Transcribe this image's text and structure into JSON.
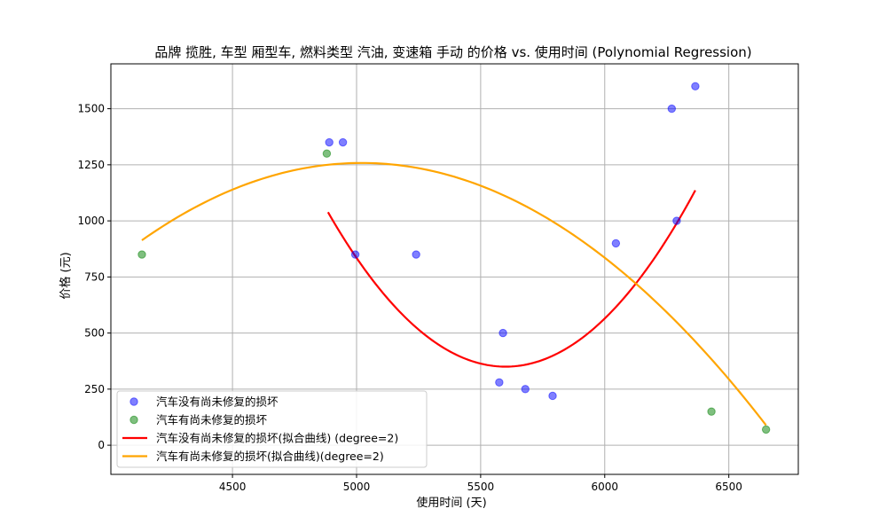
{
  "chart_data": {
    "type": "scatter",
    "title": "品牌 揽胜, 车型 厢型车, 燃料类型 汽油, 变速箱 手动 的价格 vs. 使用时间 (Polynomial Regression)",
    "xlabel": "使用时间 (天)",
    "ylabel": "价格 (元)",
    "xlim": [
      4010,
      6780
    ],
    "ylim": [
      -130,
      1700
    ],
    "x_ticks": [
      4500,
      5000,
      5500,
      6000,
      6500
    ],
    "y_ticks": [
      0,
      250,
      500,
      750,
      1000,
      1250,
      1500
    ],
    "x_tick_labels": [
      "4500",
      "5000",
      "5500",
      "6000",
      "6500"
    ],
    "y_tick_labels": [
      "0",
      "250",
      "500",
      "750",
      "1000",
      "1250",
      "1500"
    ],
    "grid": true,
    "legend_position": "lower-left",
    "series": [
      {
        "name": "汽车没有尚未修复的损坏",
        "kind": "scatter",
        "color": "#0000ff",
        "points": [
          [
            4890,
            1350
          ],
          [
            4945,
            1350
          ],
          [
            4995,
            850
          ],
          [
            5240,
            850
          ],
          [
            5575,
            280
          ],
          [
            5590,
            500
          ],
          [
            5680,
            250
          ],
          [
            5790,
            220
          ],
          [
            6045,
            900
          ],
          [
            6270,
            1500
          ],
          [
            6290,
            1000
          ],
          [
            6365,
            1600
          ]
        ]
      },
      {
        "name": "汽车有尚未修复的损坏",
        "kind": "scatter",
        "color": "#008000",
        "points": [
          [
            4135,
            850
          ],
          [
            4880,
            1300
          ],
          [
            6430,
            150
          ],
          [
            6650,
            70
          ]
        ]
      },
      {
        "name": "汽车没有尚未修复的损坏(拟合曲线) (degree=2)",
        "kind": "line",
        "color": "#ff0000",
        "x_range": [
          4885,
          6365
        ],
        "coefficients": [
          0.0013447,
          -15.0619,
          42527
        ]
      },
      {
        "name": "汽车有尚未修复的损坏(拟合曲线)(degree=2)",
        "kind": "line",
        "color": "#ffa500",
        "x_range": [
          4135,
          6650
        ],
        "coefficients": [
          -0.00044,
          4.4176,
          -9830
        ]
      }
    ]
  }
}
